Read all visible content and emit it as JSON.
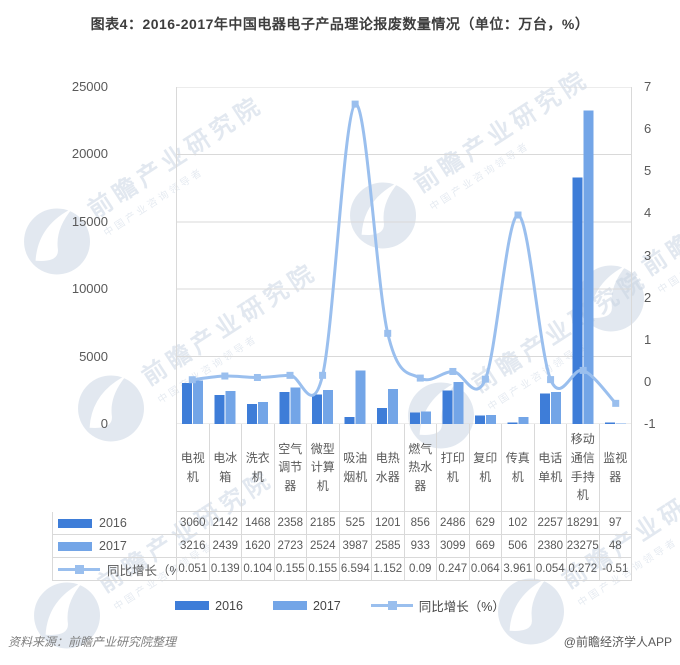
{
  "title": "图表4：2016-2017年中国电器电子产品理论报废数量情况（单位：万台，%）",
  "chart_data": {
    "type": "bar+line",
    "title": "图表4：2016-2017年中国电器电子产品理论报废数量情况（单位：万台，%）",
    "categories": [
      "电视机",
      "电冰箱",
      "洗衣机",
      "空气调节器",
      "微型计算机",
      "吸油烟机",
      "电热水器",
      "燃气热水器",
      "打印机",
      "复印机",
      "传真机",
      "电话单机",
      "移动通信手持机",
      "监视器"
    ],
    "series": [
      {
        "name": "2016",
        "type": "bar",
        "color": "#3e7dd8",
        "values": [
          3060,
          2142,
          1468,
          2358,
          2185,
          525,
          1201,
          856,
          2486,
          629,
          102,
          2257,
          18291,
          97
        ]
      },
      {
        "name": "2017",
        "type": "bar",
        "color": "#73a5e7",
        "values": [
          3216,
          2439,
          1620,
          2723,
          2524,
          3987,
          2585,
          933,
          3099,
          669,
          506,
          2380,
          23275,
          48
        ]
      },
      {
        "name": "同比增长（%）",
        "type": "line",
        "color": "#9abfee",
        "values": [
          0.051,
          0.139,
          0.104,
          0.155,
          0.155,
          6.594,
          1.152,
          0.09,
          0.247,
          0.064,
          3.961,
          0.054,
          0.272,
          -0.51
        ]
      }
    ],
    "left_axis": {
      "min": 0,
      "max": 25000,
      "ticks": [
        0,
        5000,
        10000,
        15000,
        20000,
        25000
      ]
    },
    "right_axis": {
      "min": -1,
      "max": 7,
      "ticks": [
        -1,
        0,
        1,
        2,
        3,
        4,
        5,
        6,
        7
      ]
    },
    "grid": true,
    "legend_position": "bottom",
    "data_table": {
      "rows": [
        {
          "label": "2016",
          "display": [
            "3060",
            "2142",
            "1468",
            "2358",
            "2185",
            "525",
            "1201",
            "856",
            "2486",
            "629",
            "102",
            "2257",
            "18291",
            "97"
          ]
        },
        {
          "label": "2017",
          "display": [
            "3216",
            "2439",
            "1620",
            "2723",
            "2524",
            "3987",
            "2585",
            "933",
            "3099",
            "669",
            "506",
            "2380",
            "23275",
            "48"
          ]
        },
        {
          "label": "同比增长（%）",
          "display": [
            "0.051",
            "0.139",
            "0.104",
            "0.155",
            "0.155",
            "6.594",
            "1.152",
            "0.09",
            "0.247",
            "0.064",
            "3.961",
            "0.054",
            "0.272",
            "-0.51"
          ]
        }
      ]
    }
  },
  "legend": {
    "items": [
      {
        "label": "2016"
      },
      {
        "label": "2017"
      },
      {
        "label": "同比增长（%）"
      }
    ]
  },
  "watermark": {
    "text": "前瞻产业研究院",
    "subtext": "中国产业咨询领导者"
  },
  "footer": {
    "source": "资料来源：前瞻产业研究院整理",
    "credit": "@前瞻经济学人APP"
  },
  "colors": {
    "grid": "#d9d9d9",
    "axis_text": "#595959",
    "title_text": "#3d3d3d"
  }
}
